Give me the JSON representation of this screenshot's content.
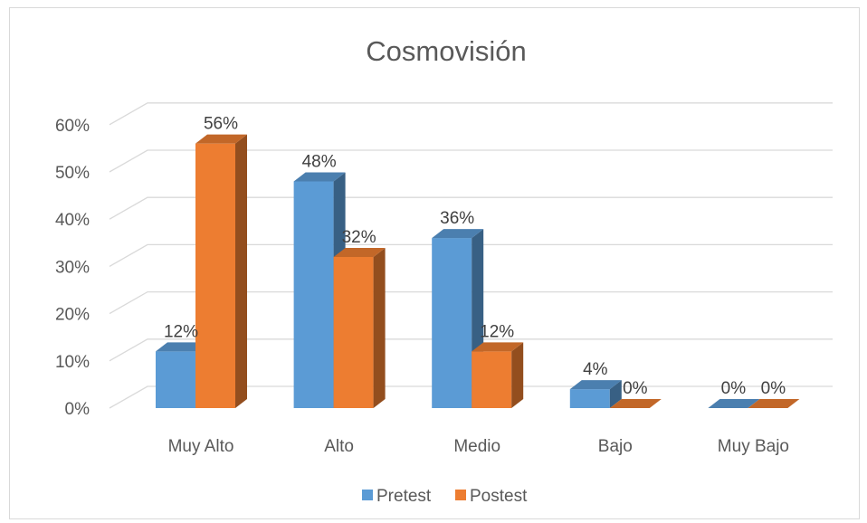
{
  "chart_data": {
    "type": "bar",
    "title": "Cosmovisión",
    "categories": [
      "Muy Alto",
      "Alto",
      "Medio",
      "Bajo",
      "Muy Bajo"
    ],
    "series": [
      {
        "name": "Pretest",
        "values": [
          12,
          48,
          36,
          4,
          0
        ],
        "labels": [
          "12%",
          "48%",
          "36%",
          "4%",
          "0%"
        ],
        "color": "#5b9bd5"
      },
      {
        "name": "Postest",
        "values": [
          56,
          32,
          12,
          0,
          0
        ],
        "labels": [
          "56%",
          "32%",
          "12%",
          "0%",
          "0%"
        ],
        "color": "#ed7d31"
      }
    ],
    "y_ticks": [
      "0%",
      "10%",
      "20%",
      "30%",
      "40%",
      "50%",
      "60%"
    ],
    "ylim": [
      0,
      60
    ],
    "grid": true,
    "legend": "bottom",
    "style": "3d-clustered-column"
  }
}
